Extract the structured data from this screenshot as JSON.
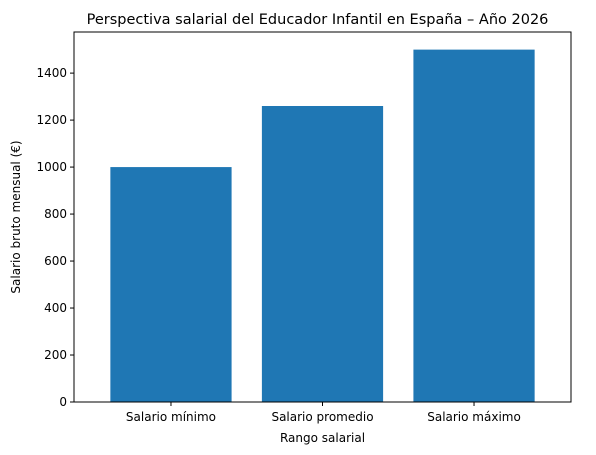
{
  "chart_data": {
    "type": "bar",
    "title": "Perspectiva salarial del Educador Infantil en España – Año 2026",
    "xlabel": "Rango salarial",
    "ylabel": "Salario bruto mensual (€)",
    "categories": [
      "Salario mínimo",
      "Salario promedio",
      "Salario máximo"
    ],
    "values": [
      1000,
      1260,
      1500
    ],
    "ylim": [
      0,
      1575
    ],
    "yticks": [
      0,
      200,
      400,
      600,
      800,
      1000,
      1200,
      1400
    ],
    "grid": false,
    "legend": "none",
    "bar_color": "#1f77b4"
  }
}
